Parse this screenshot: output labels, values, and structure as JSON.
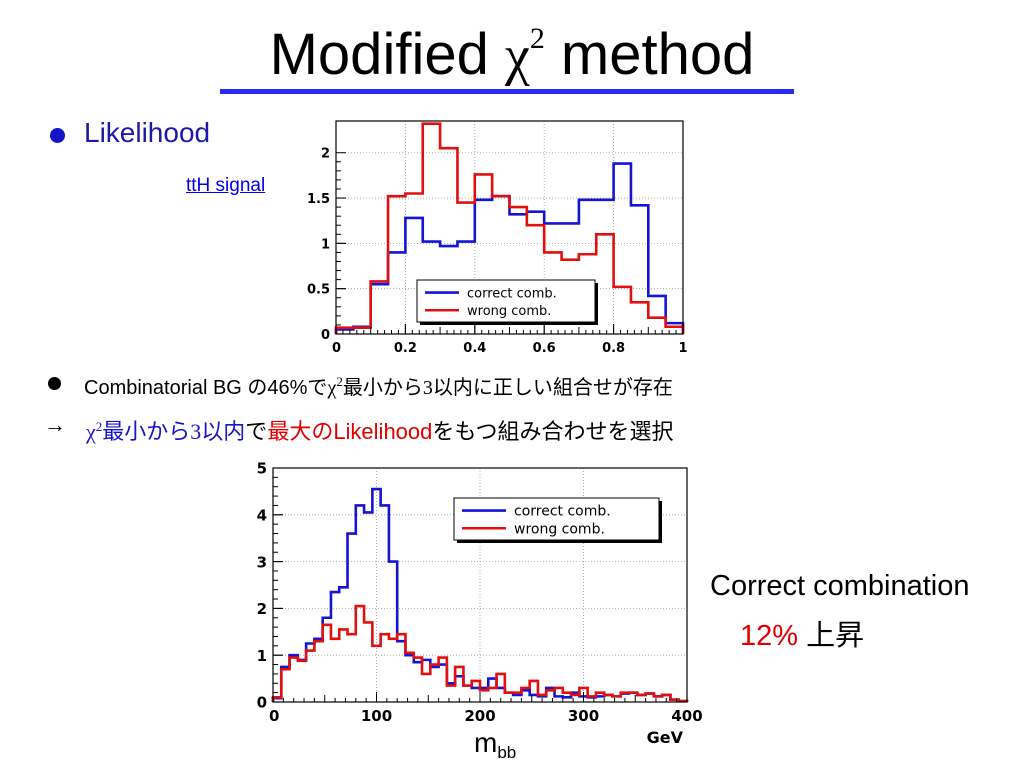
{
  "slide": {
    "title_pre": "Modified ",
    "title_chi": "χ",
    "title_sup": "2",
    "title_post": " method",
    "bullet1": "Likelihood",
    "link": "ttH signal",
    "bullet2": {
      "a": "Combinatorial BG の46%で",
      "chi": "χ",
      "sup": "2",
      "b": "最小から",
      "three": "3",
      "c": "以内に正しい組合せが存在"
    },
    "arrow": "→",
    "bullet3": {
      "chi": "χ",
      "sup": "2",
      "a": "最小から",
      "three": "3",
      "b": "以内",
      "c": "で",
      "d": "最大のLikelihood",
      "e": "をもつ組み合わせを選択"
    },
    "correct_line1": "Correct combination",
    "correct_pct": "12%",
    "correct_rise": " 上昇",
    "mbb_m": "m",
    "mbb_sub": "bb"
  },
  "colors": {
    "correct": "#1414d2",
    "wrong": "#e01010",
    "title_rule": "#2828ff",
    "bullet_blue": "#1a1aa6"
  },
  "chart_data": [
    {
      "type": "histogram",
      "title": "",
      "xlabel": "",
      "ylabel": "",
      "xlim": [
        0,
        1
      ],
      "ylim": [
        0,
        2.35
      ],
      "xticks": [
        "0",
        "0.2",
        "0.4",
        "0.6",
        "0.8",
        "1"
      ],
      "yticks": [
        "0",
        "0.5",
        "1",
        "1.5",
        "2"
      ],
      "grid": true,
      "legend": "bottom-right",
      "bin_edges": [
        0,
        0.05,
        0.1,
        0.15,
        0.2,
        0.25,
        0.3,
        0.35,
        0.4,
        0.45,
        0.5,
        0.55,
        0.6,
        0.65,
        0.7,
        0.75,
        0.8,
        0.85,
        0.9,
        0.95,
        1.0
      ],
      "series": [
        {
          "name": "correct comb.",
          "values": [
            0.05,
            0.08,
            0.55,
            0.9,
            1.28,
            1.02,
            0.97,
            1.02,
            1.48,
            1.52,
            1.32,
            1.35,
            1.22,
            1.22,
            1.48,
            1.48,
            1.88,
            1.42,
            0.42,
            0.12
          ]
        },
        {
          "name": "wrong comb.",
          "values": [
            0.07,
            0.07,
            0.58,
            1.52,
            1.55,
            2.32,
            2.05,
            1.45,
            1.76,
            1.52,
            1.4,
            1.2,
            0.9,
            0.82,
            0.88,
            1.1,
            0.52,
            0.35,
            0.18,
            0.08
          ]
        }
      ]
    },
    {
      "type": "histogram",
      "title": "",
      "xlabel": "GeV",
      "ylabel": "",
      "xlim": [
        0,
        400
      ],
      "ylim": [
        0,
        5
      ],
      "xticks": [
        "0",
        "100",
        "200",
        "300",
        "400"
      ],
      "yticks": [
        "0",
        "1",
        "2",
        "3",
        "4",
        "5"
      ],
      "grid": true,
      "legend": "top-right",
      "bin_edges_step": 8,
      "series": [
        {
          "name": "correct comb.",
          "values": [
            0.08,
            0.75,
            1.0,
            0.9,
            1.25,
            1.35,
            1.8,
            2.35,
            2.45,
            3.6,
            4.2,
            4.05,
            4.55,
            4.2,
            3.0,
            1.3,
            1.0,
            0.85,
            0.9,
            0.75,
            0.8,
            0.4,
            0.55,
            0.35,
            0.3,
            0.3,
            0.5,
            0.3,
            0.2,
            0.15,
            0.25,
            0.15,
            0.12,
            0.3,
            0.12,
            0.1,
            0.2,
            0.12,
            0.1,
            0.12,
            0.15,
            0.12,
            0.18,
            0.2,
            0.15,
            0.18,
            0.12,
            0.15,
            0.05,
            0.02
          ]
        },
        {
          "name": "wrong comb.",
          "values": [
            0.1,
            0.7,
            0.95,
            0.88,
            1.1,
            1.3,
            1.65,
            1.35,
            1.55,
            1.45,
            2.05,
            1.7,
            1.2,
            1.45,
            1.35,
            1.45,
            1.05,
            0.95,
            0.6,
            0.8,
            0.95,
            0.35,
            0.75,
            0.35,
            0.45,
            0.25,
            0.3,
            0.6,
            0.2,
            0.2,
            0.3,
            0.45,
            0.15,
            0.25,
            0.3,
            0.2,
            0.15,
            0.3,
            0.12,
            0.2,
            0.15,
            0.12,
            0.2,
            0.2,
            0.15,
            0.18,
            0.12,
            0.15,
            0.05,
            0.02
          ]
        }
      ]
    }
  ]
}
